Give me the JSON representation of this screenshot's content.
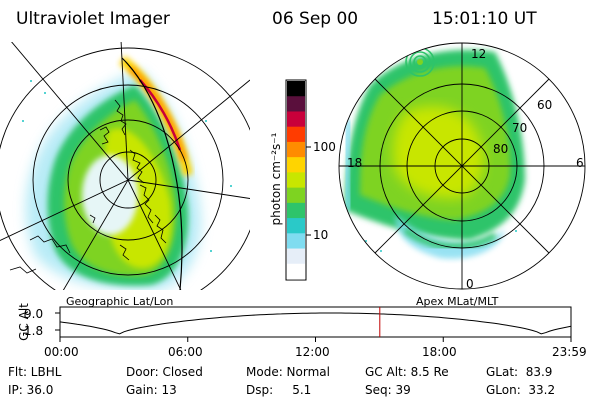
{
  "header": {
    "instrument": "Ultraviolet Imager",
    "date": "06 Sep 00",
    "time": "15:01:10 UT"
  },
  "left_panel": {
    "label": "Geographic Lat/Lon"
  },
  "right_panel": {
    "label": "Apex MLat/MLT",
    "mlt_labels": {
      "top": "12",
      "left": "18",
      "right": "6",
      "bottom": "0"
    },
    "lat_labels": [
      "60",
      "70",
      "80"
    ]
  },
  "colorbar": {
    "unit_label": "photon cm⁻²s⁻¹",
    "ticks": [
      "100",
      "10"
    ],
    "colors": [
      "#000000",
      "#5a0f3c",
      "#c8003a",
      "#ff3c00",
      "#ff8c00",
      "#ffd400",
      "#c8e600",
      "#7ed321",
      "#2ec46a",
      "#2ac9c8",
      "#7fdcf0",
      "#e6eef8",
      "#ffffff"
    ]
  },
  "altitude_plot": {
    "ylabel": "GC Alt",
    "yticks": [
      "9.0",
      "1.8"
    ],
    "xticks": [
      "00:00",
      "06:00",
      "12:00",
      "18:00",
      "23:59"
    ],
    "current_time_marker_hours": 15.02,
    "curve_color": "#000000",
    "marker_color": "#c00000"
  },
  "status": {
    "row1": [
      {
        "key": "flt",
        "text": "Flt: LBHL"
      },
      {
        "key": "door",
        "text": "Door: Closed"
      },
      {
        "key": "mode",
        "text": "Mode: Normal"
      },
      {
        "key": "gcalt",
        "text": "GC Alt: 8.5 Re"
      },
      {
        "key": "glat",
        "text": "GLat:  83.9"
      }
    ],
    "row2": [
      {
        "key": "ip",
        "text": "IP: 36.0"
      },
      {
        "key": "gain",
        "text": "Gain: 13"
      },
      {
        "key": "dsp",
        "text": "Dsp:     5.1"
      },
      {
        "key": "seq",
        "text": "Seq: 39"
      },
      {
        "key": "glon",
        "text": "GLon:  33.2"
      }
    ]
  }
}
